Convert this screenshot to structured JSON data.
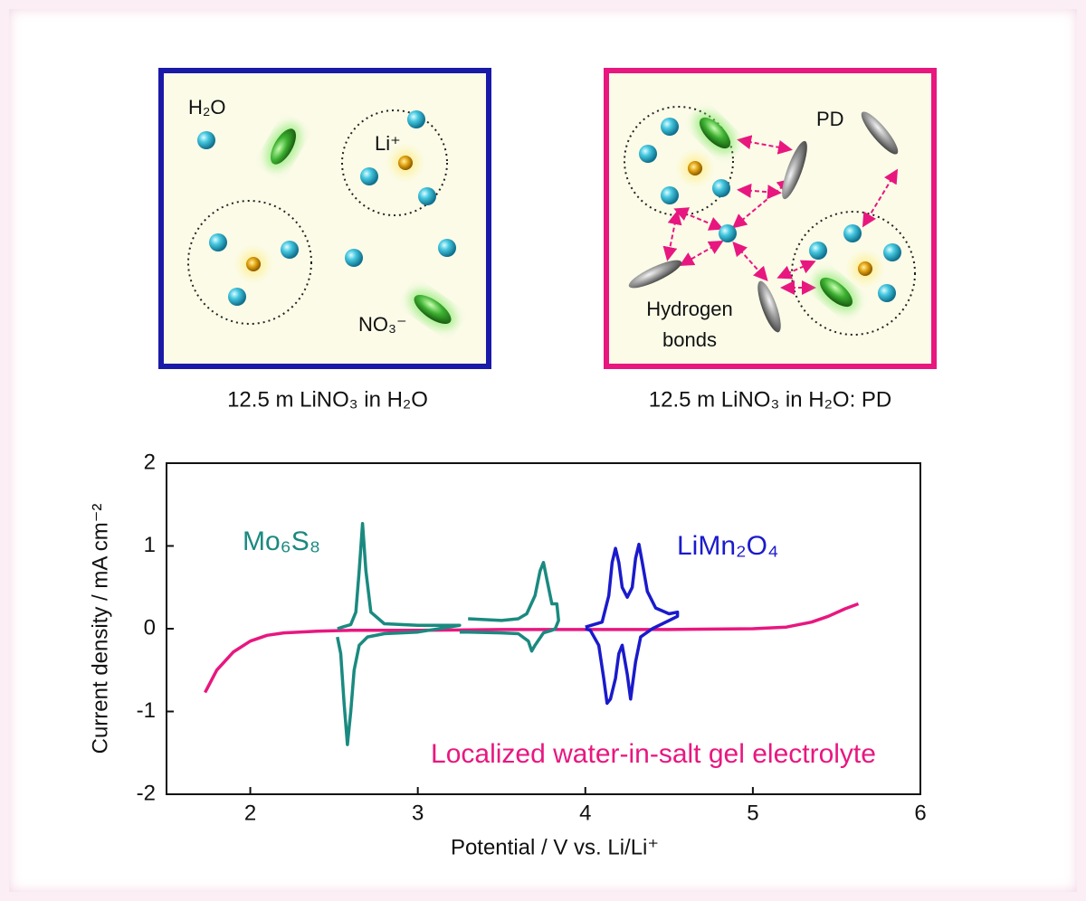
{
  "panels": [
    {
      "caption": "12.5 m LiNO₃ in H₂O",
      "labels": [
        "H₂O",
        "Li⁺",
        "NO₃⁻"
      ]
    },
    {
      "caption": "12.5 m LiNO₃ in H₂O: PD",
      "labels": [
        "PD",
        "Hydrogen",
        "bonds"
      ]
    }
  ],
  "chart_data": {
    "type": "line",
    "xlabel": "Potential / V vs. Li/Li⁺",
    "ylabel": "Current density / mA cm⁻²",
    "xlim": [
      1.5,
      6
    ],
    "ylim": [
      -2,
      2
    ],
    "xticks": [
      2,
      3,
      4,
      5,
      6
    ],
    "yticks": [
      -2,
      -1,
      0,
      1,
      2
    ],
    "series": [
      {
        "name": "Mo₆S₈",
        "color": "#1a8a80",
        "x": [
          2.52,
          2.55,
          2.6,
          2.63,
          2.65,
          2.67,
          2.69,
          2.72,
          2.8,
          3.0,
          3.25,
          3.0,
          2.8,
          2.7,
          2.65,
          2.62,
          2.6,
          2.58,
          2.56,
          2.54,
          2.52,
          null,
          3.3,
          3.5,
          3.6,
          3.65,
          3.7,
          3.73,
          3.75,
          3.77,
          3.8,
          3.83,
          3.84,
          3.82,
          3.8,
          3.75,
          3.7,
          3.68,
          3.66,
          3.6,
          3.5,
          3.3,
          3.25
        ],
        "values": [
          0.0,
          0.02,
          0.05,
          0.2,
          0.7,
          1.27,
          0.7,
          0.2,
          0.06,
          0.04,
          0.04,
          -0.04,
          -0.06,
          -0.1,
          -0.2,
          -0.5,
          -1.0,
          -1.4,
          -0.9,
          -0.3,
          -0.1,
          null,
          0.12,
          0.1,
          0.12,
          0.18,
          0.4,
          0.7,
          0.8,
          0.6,
          0.3,
          0.3,
          0.1,
          0.0,
          -0.02,
          -0.05,
          -0.2,
          -0.27,
          -0.15,
          -0.06,
          -0.05,
          -0.04,
          -0.04
        ]
      },
      {
        "name": "LiMn₂O₄",
        "color": "#1a1acc",
        "x": [
          4.0,
          4.1,
          4.14,
          4.16,
          4.18,
          4.2,
          4.22,
          4.25,
          4.28,
          4.3,
          4.32,
          4.34,
          4.37,
          4.42,
          4.5,
          4.55,
          4.55,
          4.5,
          4.4,
          4.33,
          4.3,
          4.28,
          4.27,
          4.25,
          4.22,
          4.2,
          4.18,
          4.15,
          4.13,
          4.11,
          4.08,
          4.03,
          4.0
        ],
        "values": [
          0.02,
          0.08,
          0.4,
          0.8,
          0.97,
          0.8,
          0.5,
          0.38,
          0.5,
          0.85,
          1.02,
          0.8,
          0.45,
          0.25,
          0.18,
          0.2,
          0.15,
          0.1,
          0.0,
          -0.1,
          -0.4,
          -0.7,
          -0.85,
          -0.55,
          -0.2,
          -0.3,
          -0.6,
          -0.85,
          -0.9,
          -0.6,
          -0.2,
          -0.02,
          0.0
        ]
      },
      {
        "name": "Localized water-in-salt gel electrolyte",
        "color": "#e8177f",
        "x": [
          1.73,
          1.8,
          1.9,
          2.0,
          2.1,
          2.2,
          2.4,
          2.6,
          3.0,
          3.5,
          4.0,
          4.5,
          5.0,
          5.2,
          5.35,
          5.45,
          5.55,
          5.63
        ],
        "values": [
          -0.77,
          -0.5,
          -0.28,
          -0.15,
          -0.08,
          -0.05,
          -0.03,
          -0.02,
          -0.02,
          -0.01,
          -0.01,
          -0.01,
          0,
          0.02,
          0.08,
          0.15,
          0.24,
          0.3
        ]
      }
    ]
  }
}
